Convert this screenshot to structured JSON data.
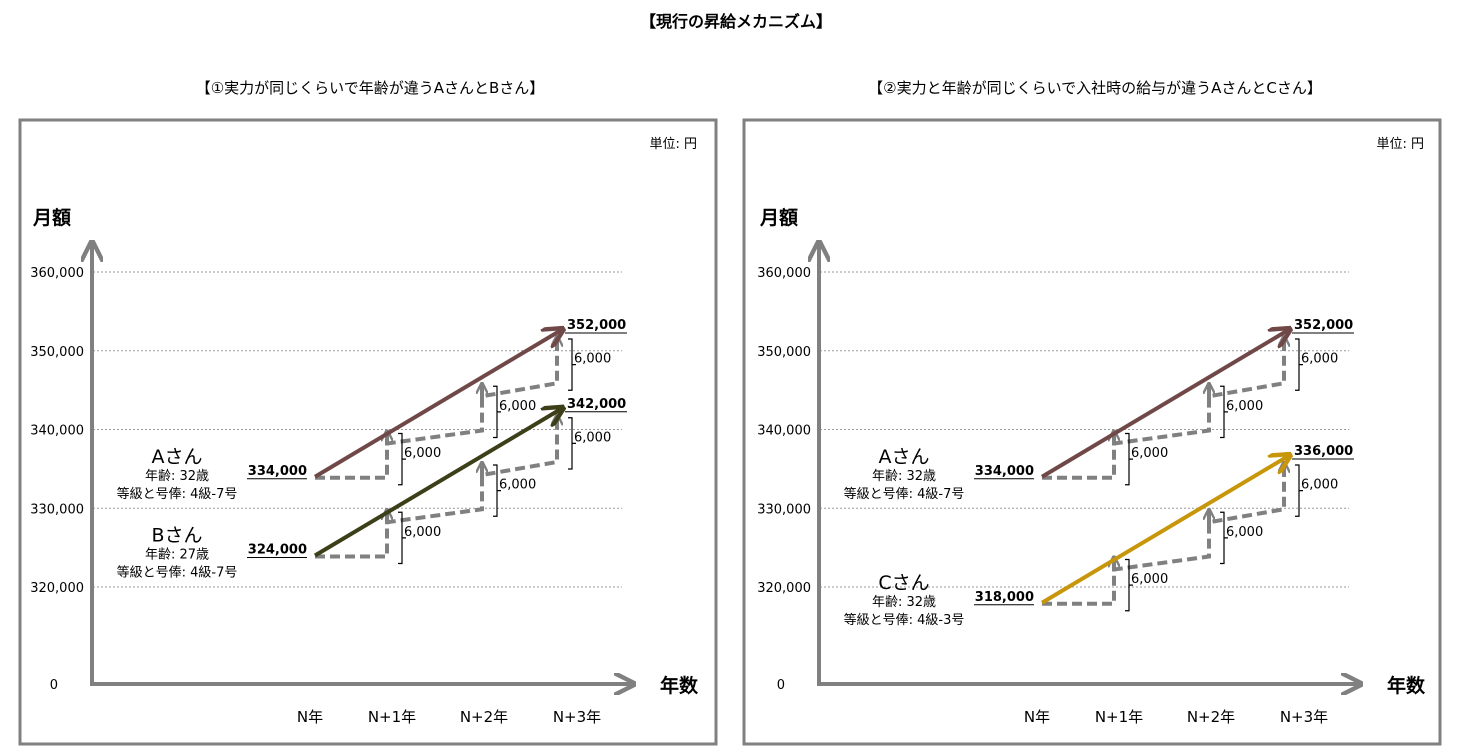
{
  "page_title": "【現行の昇給メカニズム】",
  "chart_data": [
    {
      "type": "line",
      "title": "【①実力が同じくらいで年齢が違うAさんとBさん】",
      "unit": "単位: 円",
      "ylabel": "月額",
      "xlabel": "年数",
      "y_ticks": [
        "360,000",
        "350,000",
        "340,000",
        "330,000",
        "320,000"
      ],
      "y_zero": "0",
      "categories": [
        "N年",
        "N+1年",
        "N+2年",
        "N+3年"
      ],
      "grid": true,
      "series": [
        {
          "name": "Aさん",
          "info": [
            "年齢: 32歳",
            "等級と号俸: 4級-7号"
          ],
          "color": "#704848",
          "values": [
            334000,
            340000,
            346000,
            352000
          ],
          "start_label": "334,000",
          "end_label": "352,000",
          "step_labels": [
            "6,000",
            "6,000",
            "6,000"
          ]
        },
        {
          "name": "Bさん",
          "info": [
            "年齢: 27歳",
            "等級と号俸: 4級-7号"
          ],
          "color": "#3c3f18",
          "values": [
            324000,
            330000,
            336000,
            342000
          ],
          "start_label": "324,000",
          "end_label": "342,000",
          "step_labels": [
            "6,000",
            "6,000",
            "6,000"
          ]
        }
      ]
    },
    {
      "type": "line",
      "title": "【②実力と年齢が同じくらいで入社時の給与が違うAさんとCさん】",
      "unit": "単位: 円",
      "ylabel": "月額",
      "xlabel": "年数",
      "y_ticks": [
        "360,000",
        "350,000",
        "340,000",
        "330,000",
        "320,000"
      ],
      "y_zero": "0",
      "categories": [
        "N年",
        "N+1年",
        "N+2年",
        "N+3年"
      ],
      "grid": true,
      "series": [
        {
          "name": "Aさん",
          "info": [
            "年齢: 32歳",
            "等級と号俸: 4級-7号"
          ],
          "color": "#704848",
          "values": [
            334000,
            340000,
            346000,
            352000
          ],
          "start_label": "334,000",
          "end_label": "352,000",
          "step_labels": [
            "6,000",
            "6,000",
            "6,000"
          ]
        },
        {
          "name": "Cさん",
          "info": [
            "年齢: 32歳",
            "等級と号俸: 4級-3号"
          ],
          "color": "#c8960a",
          "values": [
            318000,
            324000,
            330000,
            336000
          ],
          "start_label": "318,000",
          "end_label": "336,000",
          "step_labels": [
            "6,000",
            "6,000",
            "6,000"
          ]
        }
      ]
    }
  ]
}
